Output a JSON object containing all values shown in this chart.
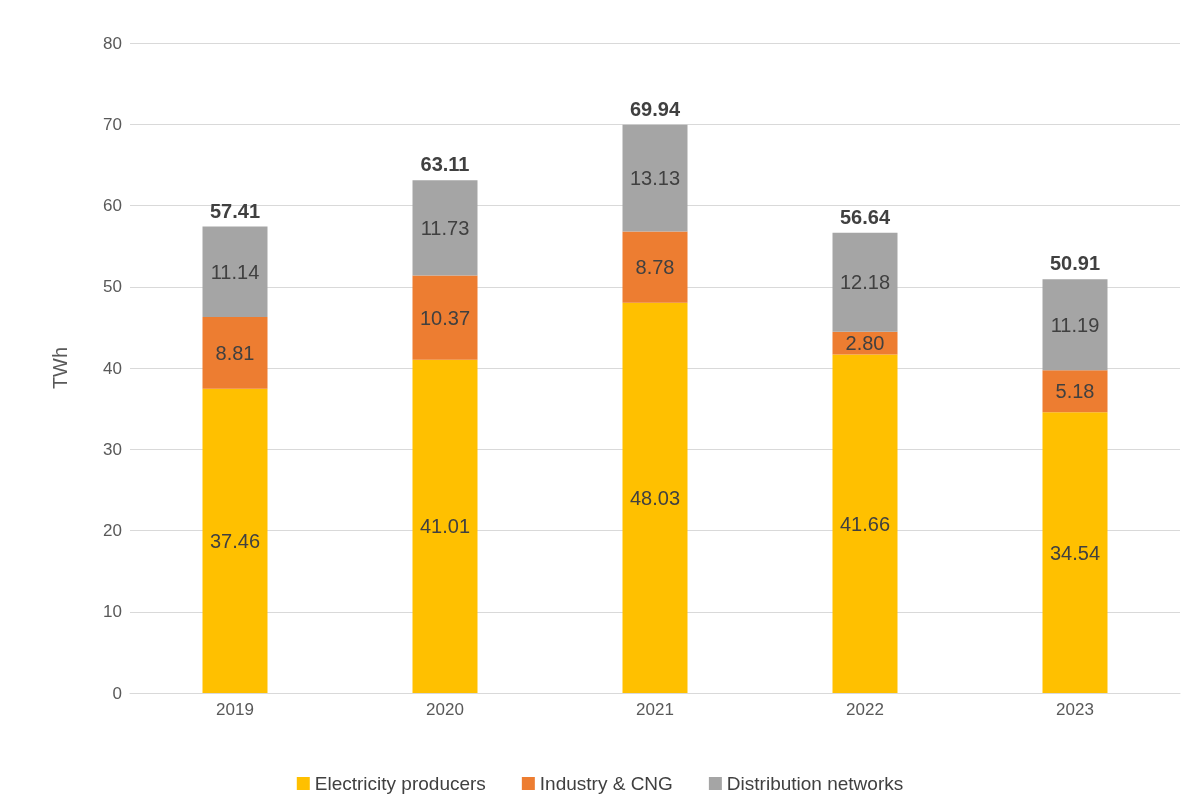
{
  "chart_data": {
    "type": "bar",
    "stacked": true,
    "ylabel": "TWh",
    "categories": [
      "2019",
      "2020",
      "2021",
      "2022",
      "2023"
    ],
    "series": [
      {
        "name": "Electricity producers",
        "color": "#ffc000",
        "values": [
          37.46,
          41.01,
          48.03,
          41.66,
          34.54
        ],
        "value_labels": [
          "37.46",
          "41.01",
          "48.03",
          "41.66",
          "34.54"
        ]
      },
      {
        "name": "Industry & CNG",
        "color": "#ed7d31",
        "values": [
          8.81,
          10.37,
          8.78,
          2.8,
          5.18
        ],
        "value_labels": [
          "8.81",
          "10.37",
          "8.78",
          "2.80",
          "5.18"
        ]
      },
      {
        "name": "Distribution networks",
        "color": "#a5a5a5",
        "values": [
          11.14,
          11.73,
          13.13,
          12.18,
          11.19
        ],
        "value_labels": [
          "11.14",
          "11.73",
          "13.13",
          "12.18",
          "11.19"
        ]
      }
    ],
    "totals": [
      "57.41",
      "63.11",
      "69.94",
      "56.64",
      "50.91"
    ],
    "ylim": [
      0,
      80
    ],
    "yticks": [
      0,
      10,
      20,
      30,
      40,
      50,
      60,
      70,
      80
    ],
    "grid": "y",
    "legend": "bottom"
  }
}
